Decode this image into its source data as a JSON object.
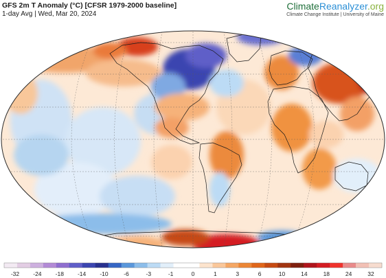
{
  "header": {
    "title": "GFS 2m T Anomaly (°C) [CFSR 1979-2000 baseline]",
    "subtitle": "1-day Avg | Wed, Mar 20, 2024"
  },
  "brand": {
    "name_part1": "Climate",
    "name_part2": "Reanalyzer",
    "name_part3": ".org",
    "tagline": "Climate Change Institute | University of Maine",
    "colors": {
      "climate": "#1f6f3a",
      "reanalyzer": "#2b8fd6",
      "org": "#8ab33f"
    }
  },
  "map": {
    "projection": "Robinson / Winkel-type world ellipse",
    "features": [
      "continent-outlines",
      "country-borders",
      "graticule-dashed"
    ]
  },
  "legend": {
    "unit": "°C",
    "colors": [
      "#f3eaf3",
      "#e3cde4",
      "#cdb0df",
      "#b38ad6",
      "#8f6ecf",
      "#5f5ec8",
      "#3b45b0",
      "#27308e",
      "#3566c4",
      "#5a97db",
      "#8cbdea",
      "#bcdbf5",
      "#e2effa",
      "#ffffff",
      "#ffffff",
      "#fde4cd",
      "#fac79a",
      "#f5a764",
      "#ec8635",
      "#e0661a",
      "#c64a12",
      "#a13410",
      "#7f1f0e",
      "#b0141b",
      "#d41c22",
      "#f0322c",
      "#e98a8a",
      "#f2c0b5",
      "#f7dccf"
    ],
    "ticks": [
      "-32",
      "-24",
      "-18",
      "-14",
      "-10",
      "-6",
      "-3",
      "-1",
      "0",
      "1",
      "3",
      "6",
      "10",
      "14",
      "18",
      "24",
      "32"
    ]
  }
}
